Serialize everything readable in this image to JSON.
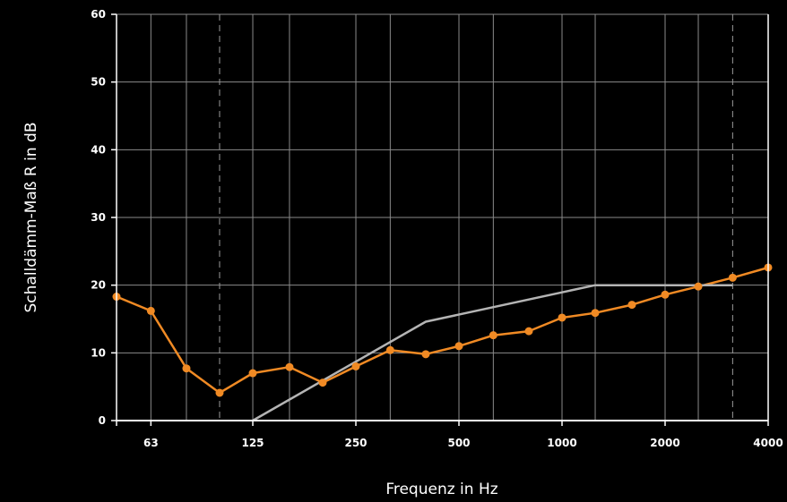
{
  "chart_data": {
    "type": "line",
    "title": "",
    "xlabel": "Frequenz in Hz",
    "ylabel": "Schalldämm-Maß R in dB",
    "x_scale": "log2",
    "xlim": [
      50,
      4000
    ],
    "ylim": [
      0,
      60
    ],
    "x_tick_labels": [
      {
        "value": 63,
        "label": "63"
      },
      {
        "value": 125,
        "label": "125"
      },
      {
        "value": 250,
        "label": "250"
      },
      {
        "value": 500,
        "label": "500"
      },
      {
        "value": 1000,
        "label": "1000"
      },
      {
        "value": 2000,
        "label": "2000"
      },
      {
        "value": 4000,
        "label": "4000"
      }
    ],
    "y_ticks": [
      0,
      10,
      20,
      30,
      40,
      50,
      60
    ],
    "minor_x_grid": [
      80,
      160,
      315,
      630,
      1250,
      2500
    ],
    "dashed_x_lines": [
      100,
      3150
    ],
    "grid": true,
    "series": [
      {
        "color": "#F08A24",
        "markers": true,
        "x": [
          50,
          63,
          80,
          100,
          125,
          160,
          200,
          250,
          315,
          400,
          500,
          630,
          800,
          1000,
          1250,
          1600,
          2000,
          2500,
          3150,
          4000
        ],
        "y": [
          18.3,
          16.2,
          7.7,
          4.1,
          7.0,
          7.9,
          5.6,
          8.0,
          10.4,
          9.8,
          11.0,
          12.6,
          13.2,
          15.2,
          15.9,
          17.1,
          18.6,
          19.8,
          21.1,
          22.6
        ]
      },
      {
        "color": "#B4B4B4",
        "markers": false,
        "x": [
          125,
          400,
          1250,
          3150
        ],
        "y": [
          0,
          14.6,
          20,
          20
        ]
      }
    ]
  }
}
